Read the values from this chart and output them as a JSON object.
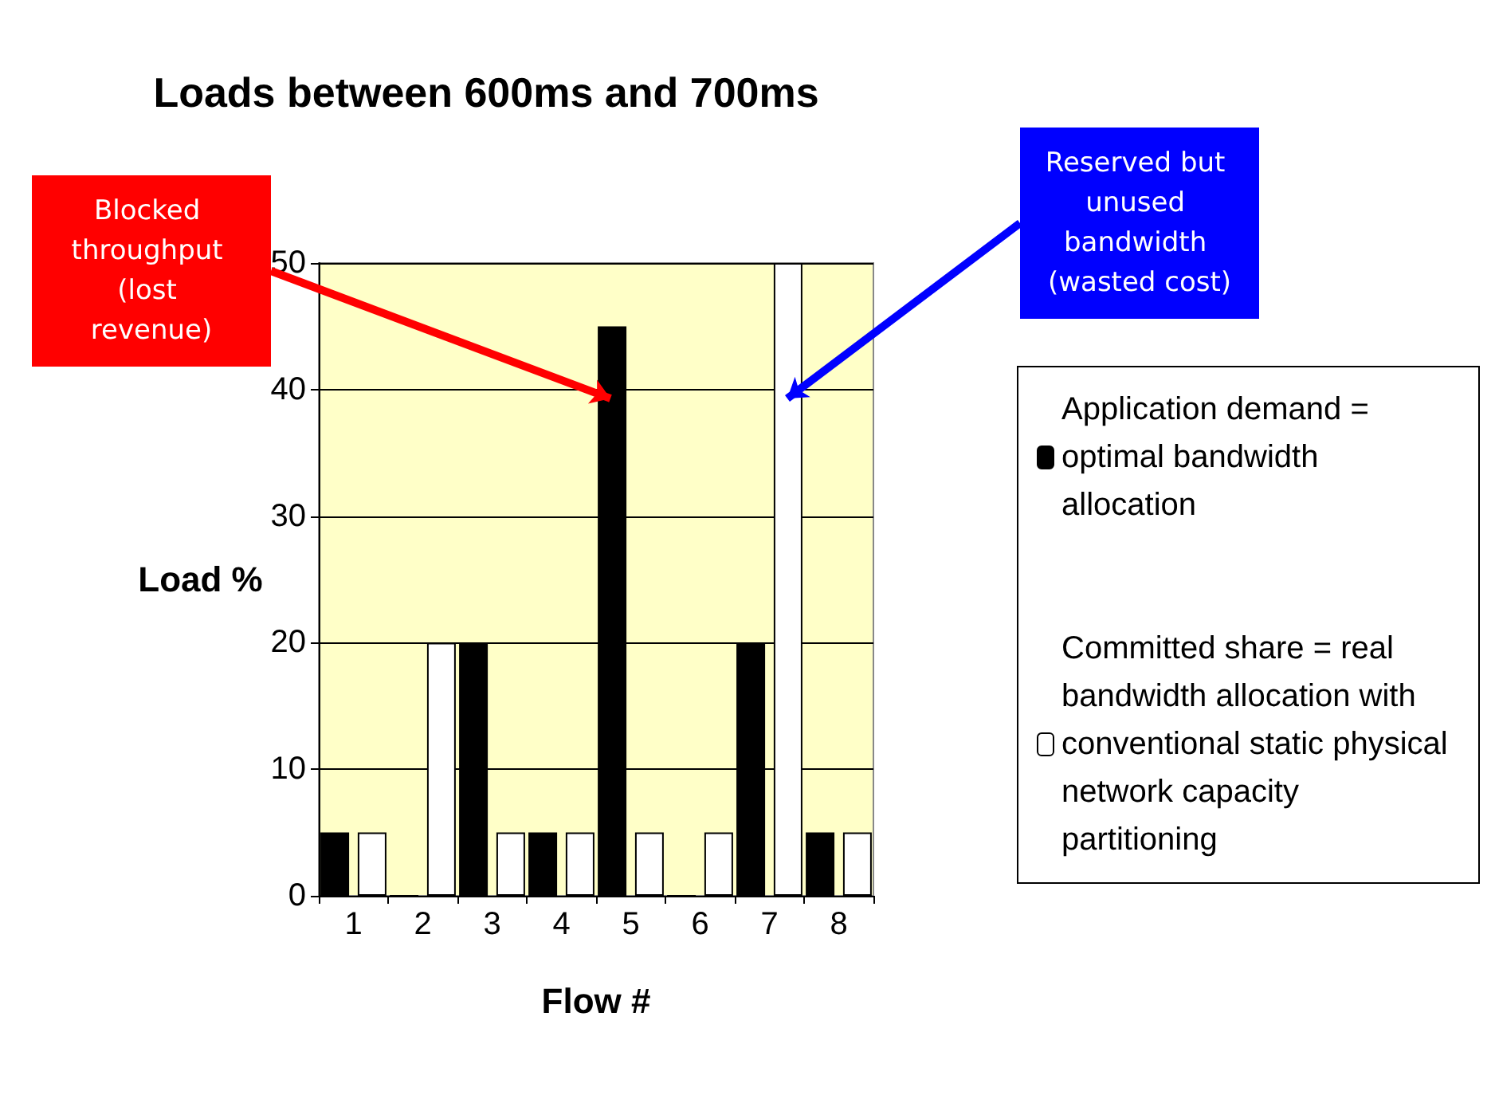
{
  "chart_data": {
    "type": "bar",
    "title": "Loads between 600ms and 700ms",
    "xlabel": "Flow #",
    "ylabel": "Load %",
    "categories": [
      "1",
      "2",
      "3",
      "4",
      "5",
      "6",
      "7",
      "8"
    ],
    "series": [
      {
        "name": "Application demand = optimal bandwidth allocation",
        "color": "#000000",
        "values": [
          5,
          0,
          20,
          5,
          45,
          0,
          20,
          5
        ]
      },
      {
        "name": "Committed share = real bandwidth allocation with conventional static physical network capacity partitioning",
        "color": "#ffffff",
        "values": [
          5,
          20,
          5,
          5,
          5,
          5,
          50,
          5
        ]
      }
    ],
    "ylim": [
      0,
      50
    ],
    "yticks": [
      0,
      10,
      20,
      30,
      40,
      50
    ],
    "grid": "y",
    "legend": "right",
    "annotations": [
      "Blocked throughput (lost revenue)",
      "Reserved but unused bandwidth (wasted cost)"
    ]
  }
}
